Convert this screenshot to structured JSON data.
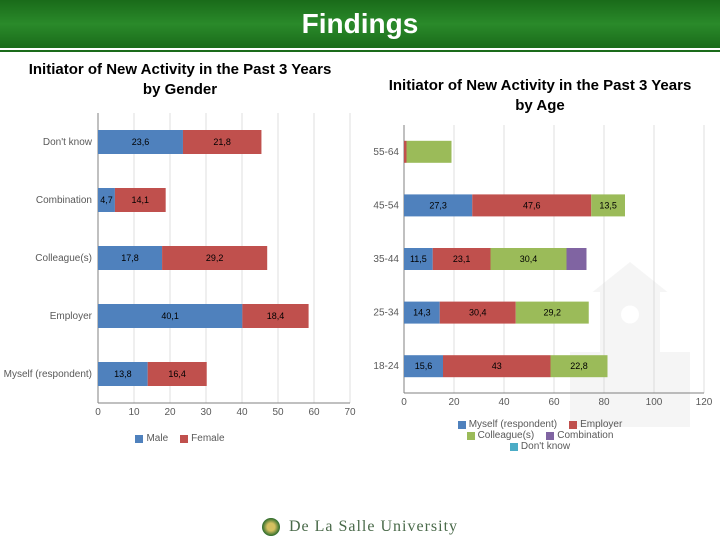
{
  "header": {
    "title": "Findings"
  },
  "footer": {
    "text": "De La Salle University"
  },
  "chart_left": {
    "type": "stacked-bar-horizontal",
    "title": "Initiator of New Activity in the Past 3 Years by Gender",
    "categories": [
      "Don't know",
      "Combination",
      "Colleague(s)",
      "Employer",
      "Myself (respondent)"
    ],
    "xlim": [
      0,
      70
    ],
    "xtick_step": 10,
    "series": [
      {
        "name": "Male",
        "color": "#4f81bd",
        "values": [
          23.6,
          4.7,
          17.8,
          40.1,
          13.8
        ]
      },
      {
        "name": "Female",
        "color": "#c0504d",
        "values": [
          21.8,
          14.1,
          29.2,
          18.4,
          16.4
        ]
      }
    ],
    "legend": [
      "Male",
      "Female"
    ],
    "legend_colors": [
      "#4f81bd",
      "#c0504d"
    ],
    "axis_color": "#808080",
    "grid_color": "#bfbfbf",
    "label_fontsize": 10,
    "title_fontsize": 15,
    "background": "#ffffff"
  },
  "chart_right": {
    "type": "stacked-bar-horizontal",
    "title": "Initiator of New Activity in the Past 3 Years by Age",
    "categories": [
      "55-64",
      "45-54",
      "35-44",
      "25-34",
      "18-24"
    ],
    "xlim": [
      0,
      120
    ],
    "xtick_step": 20,
    "series": [
      {
        "name": "Myself (respondent)",
        "color": "#4f81bd"
      },
      {
        "name": "Employer",
        "color": "#c0504d"
      },
      {
        "name": "Colleague(s)",
        "color": "#9bbb59"
      },
      {
        "name": "Combination",
        "color": "#8064a2"
      },
      {
        "name": "Don't know",
        "color": "#4bacc6"
      }
    ],
    "stacks": [
      [
        {
          "v": 0,
          "label": "0"
        },
        {
          "v": 1,
          "label": "1,"
        },
        {
          "v": 18,
          "label": ""
        },
        {
          "v": 0,
          "label": ""
        },
        {
          "v": 0,
          "label": ""
        }
      ],
      [
        {
          "v": 27.3,
          "label": "27,3"
        },
        {
          "v": 47.6,
          "label": "47,6"
        },
        {
          "v": 13.5,
          "label": "13,5"
        },
        {
          "v": 0,
          "label": ""
        },
        {
          "v": 0,
          "label": ""
        }
      ],
      [
        {
          "v": 11.5,
          "label": "11,5"
        },
        {
          "v": 23.1,
          "label": "23,1"
        },
        {
          "v": 30.4,
          "label": "30,4"
        },
        {
          "v": 8,
          "label": ""
        },
        {
          "v": 0,
          "label": ""
        }
      ],
      [
        {
          "v": 14.3,
          "label": "14,3"
        },
        {
          "v": 30.4,
          "label": "30,4"
        },
        {
          "v": 29.2,
          "label": "29,2"
        },
        {
          "v": 0,
          "label": ""
        },
        {
          "v": 0,
          "label": ""
        }
      ],
      [
        {
          "v": 15.6,
          "label": "15,6"
        },
        {
          "v": 43,
          "label": "43"
        },
        {
          "v": 22.8,
          "label": "22,8"
        },
        {
          "v": 0,
          "label": ""
        },
        {
          "v": 0,
          "label": ""
        }
      ]
    ],
    "legend": [
      "Myself (respondent)",
      "Employer",
      "Colleague(s)",
      "Combination",
      "Don't know"
    ],
    "legend_colors": [
      "#4f81bd",
      "#c0504d",
      "#9bbb59",
      "#8064a2",
      "#4bacc6"
    ],
    "axis_color": "#808080",
    "grid_color": "#bfbfbf",
    "label_fontsize": 10,
    "title_fontsize": 15,
    "background": "#ffffff"
  }
}
